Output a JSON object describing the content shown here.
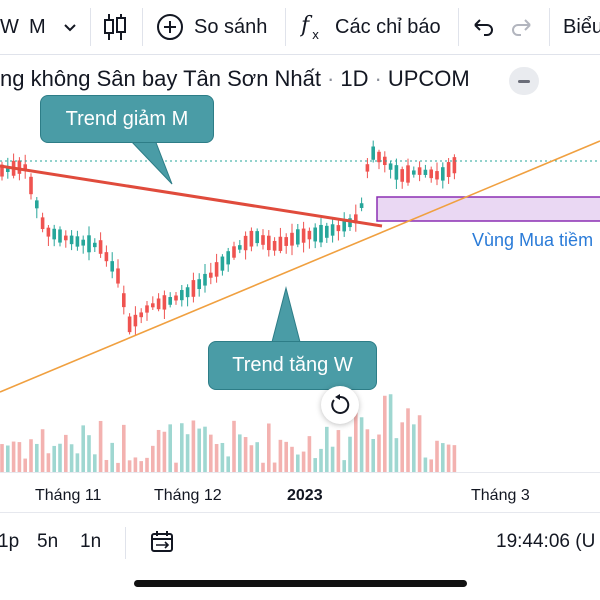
{
  "toolbar": {
    "interval_partial": "W",
    "interval_selected": "M",
    "compare_label": "So sánh",
    "indicators_label": "Các chỉ báo",
    "chart_label_partial": "Biểu"
  },
  "symbol": {
    "name_partial": "ng không Sân bay Tân Sơn Nhất",
    "separator": "·",
    "interval": "1D",
    "exchange": "UPCOM"
  },
  "annotations": {
    "trend_down": "Trend giảm M",
    "trend_up": "Trend tăng W",
    "buy_zone": "Vùng Mua tiềm"
  },
  "colors": {
    "up_candle": "#26a69a",
    "down_candle": "#ef5350",
    "up_volume": "#9fd7d1",
    "down_volume": "#f3b2b0",
    "trend_down_line": "#e04b3c",
    "trend_up_line": "#f0a040",
    "buy_zone_fill": "#ead8f3",
    "buy_zone_border": "#8b2fb3",
    "callout_bg": "#4a9ca6",
    "price_line": "#26a69a"
  },
  "icons": {
    "candles": "candlestick-icon",
    "compare": "plus-circle-icon",
    "indicators": "fx-icon",
    "undo": "undo-icon",
    "redo": "redo-icon",
    "collapse": "minus-icon",
    "replay": "replay-icon",
    "calendar": "calendar-range-icon"
  },
  "chart_data": {
    "type": "candlestick",
    "x_ticks": [
      "Tháng 11",
      "Tháng 12",
      "2023",
      "Tháng 3"
    ],
    "x_ticks_bold": [
      "2023"
    ],
    "trend_lines": [
      {
        "label": "Trend giảm M",
        "direction": "down"
      },
      {
        "label": "Trend tăng W",
        "direction": "up"
      }
    ],
    "zones": [
      {
        "label": "Vùng Mua tiềm",
        "type": "buy"
      }
    ],
    "grid": false
  },
  "bottom": {
    "range_1d": "1p",
    "range_5d": "5n",
    "range_1y": "1n",
    "time": "19:44:06 (U"
  }
}
